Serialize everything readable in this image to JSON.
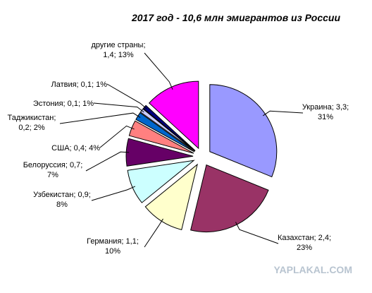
{
  "chart_data": {
    "type": "pie",
    "title": "2017 год - 10,6 млн эмигрантов из России",
    "categories": [
      "Украина",
      "Казахстан",
      "Германия",
      "Узбекистан",
      "Белоруссия",
      "США",
      "Таджикистан",
      "Эстония",
      "Латвия",
      "другие страны"
    ],
    "values": [
      3.3,
      2.4,
      1.1,
      0.9,
      0.7,
      0.4,
      0.2,
      0.1,
      0.1,
      1.4
    ],
    "value_labels": [
      "3,3",
      "2,4",
      "1,1",
      "0,9",
      "0,7",
      "0,4",
      "0,2",
      "0,1",
      "0,1",
      "1,4"
    ],
    "percent_labels": [
      "31%",
      "23%",
      "10%",
      "8%",
      "7%",
      "4%",
      "2%",
      "1%",
      "1%",
      "13%"
    ],
    "separator": "; ",
    "colors": [
      "#9999ff",
      "#993366",
      "#ffffcc",
      "#ccffff",
      "#660066",
      "#ff8080",
      "#0066cc",
      "#ccccff",
      "#000080",
      "#ff00ff"
    ],
    "watermark": "YAPLAKAL.COM"
  }
}
